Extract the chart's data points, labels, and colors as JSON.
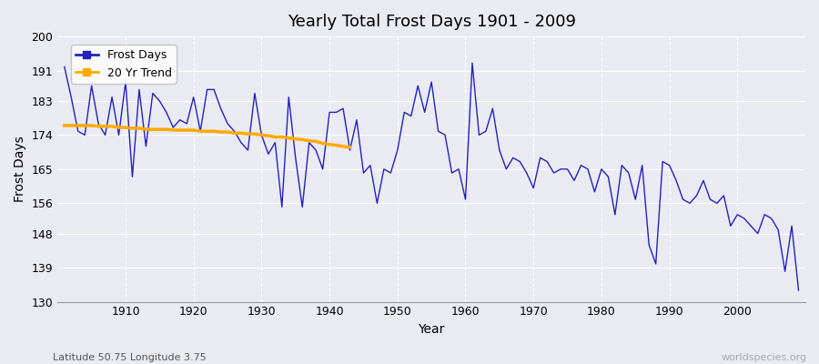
{
  "title": "Yearly Total Frost Days 1901 - 2009",
  "xlabel": "Year",
  "ylabel": "Frost Days",
  "subtitle": "Latitude 50.75 Longitude 3.75",
  "watermark": "worldspecies.org",
  "ylim": [
    130,
    200
  ],
  "yticks": [
    130,
    139,
    148,
    156,
    165,
    174,
    183,
    191,
    200
  ],
  "line_color": "#2222bb",
  "trend_color": "#ffaa00",
  "bg_color": "#eaeaf2",
  "grid_color": "#ffffff",
  "years": [
    1901,
    1902,
    1903,
    1904,
    1905,
    1906,
    1907,
    1908,
    1909,
    1910,
    1911,
    1912,
    1913,
    1914,
    1915,
    1916,
    1917,
    1918,
    1919,
    1920,
    1921,
    1922,
    1923,
    1924,
    1925,
    1926,
    1927,
    1928,
    1929,
    1930,
    1931,
    1932,
    1933,
    1934,
    1935,
    1936,
    1937,
    1938,
    1939,
    1940,
    1941,
    1942,
    1943,
    1944,
    1945,
    1946,
    1947,
    1948,
    1949,
    1950,
    1951,
    1952,
    1953,
    1954,
    1955,
    1956,
    1957,
    1958,
    1959,
    1960,
    1961,
    1962,
    1963,
    1964,
    1965,
    1966,
    1967,
    1968,
    1969,
    1970,
    1971,
    1972,
    1973,
    1974,
    1975,
    1976,
    1977,
    1978,
    1979,
    1980,
    1981,
    1982,
    1983,
    1984,
    1985,
    1986,
    1987,
    1988,
    1989,
    1990,
    1991,
    1992,
    1993,
    1994,
    1995,
    1996,
    1997,
    1998,
    1999,
    2000,
    2001,
    2002,
    2003,
    2004,
    2005,
    2006,
    2007,
    2008,
    2009
  ],
  "frost_days": [
    192,
    184,
    175,
    174,
    187,
    177,
    174,
    184,
    174,
    188,
    163,
    186,
    171,
    185,
    183,
    180,
    176,
    178,
    177,
    184,
    175,
    186,
    186,
    181,
    177,
    175,
    172,
    170,
    185,
    174,
    169,
    172,
    155,
    184,
    168,
    155,
    172,
    170,
    165,
    180,
    180,
    181,
    170,
    178,
    164,
    166,
    156,
    165,
    164,
    170,
    180,
    179,
    187,
    180,
    188,
    175,
    174,
    164,
    165,
    157,
    193,
    174,
    175,
    181,
    170,
    165,
    168,
    167,
    164,
    160,
    168,
    167,
    164,
    165,
    165,
    162,
    166,
    165,
    159,
    165,
    163,
    153,
    166,
    164,
    157,
    166,
    145,
    140,
    167,
    166,
    162,
    157,
    156,
    158,
    162,
    157,
    156,
    158,
    150,
    153,
    152,
    150,
    148,
    153,
    152,
    149,
    138,
    150,
    133
  ],
  "trend_years": [
    1901,
    1902,
    1903,
    1904,
    1905,
    1906,
    1907,
    1908,
    1909,
    1910,
    1911,
    1912,
    1913,
    1914,
    1915,
    1916,
    1917,
    1918,
    1919,
    1920,
    1921,
    1922,
    1923,
    1924,
    1925,
    1926,
    1927,
    1928,
    1929,
    1930,
    1931,
    1932,
    1933,
    1934,
    1935,
    1936,
    1937,
    1938,
    1939,
    1940,
    1941,
    1942,
    1943
  ],
  "trend_values": [
    176.5,
    176.5,
    176.5,
    176.5,
    176.5,
    176.3,
    176.3,
    176.3,
    176.0,
    176.0,
    175.8,
    175.8,
    175.5,
    175.5,
    175.5,
    175.5,
    175.3,
    175.3,
    175.3,
    175.3,
    175.0,
    175.0,
    175.0,
    174.8,
    174.8,
    174.5,
    174.5,
    174.3,
    174.3,
    174.0,
    173.8,
    173.5,
    173.5,
    173.2,
    173.0,
    172.8,
    172.5,
    172.3,
    171.8,
    171.5,
    171.3,
    171.0,
    170.8
  ]
}
